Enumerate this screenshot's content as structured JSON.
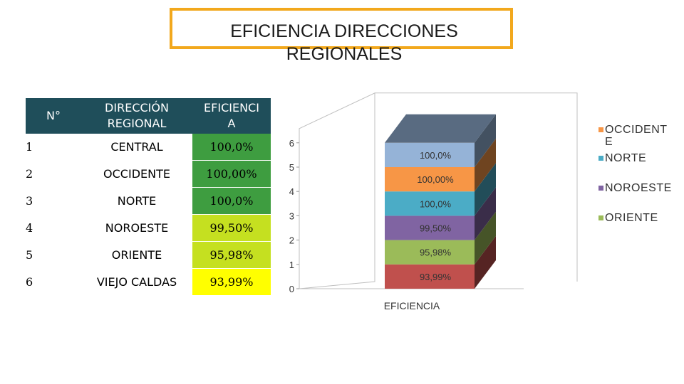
{
  "title": {
    "line1": "EFICIENCIA DIRECCIONES",
    "line2": "REGIONALES"
  },
  "table": {
    "headers": {
      "num": "N°",
      "direccion": "DIRECCIÓN REGIONAL",
      "eficiencia": "EFICIENCIA"
    },
    "header_lines": {
      "direccion_1": "DIRECCIÓN",
      "direccion_2": "REGIONAL",
      "eficiencia_1": "EFICIENCI",
      "eficiencia_2": "A"
    },
    "rows": [
      {
        "num": "1",
        "name": "CENTRAL",
        "value": "100,0%",
        "color": "#3e9d40"
      },
      {
        "num": "2",
        "name": "OCCIDENTE",
        "value": "100,00%",
        "color": "#3e9d40"
      },
      {
        "num": "3",
        "name": "NORTE",
        "value": "100,0%",
        "color": "#3e9d40"
      },
      {
        "num": "4",
        "name": "NOROESTE",
        "value": "99,50%",
        "color": "#c5e020"
      },
      {
        "num": "5",
        "name": "ORIENTE",
        "value": "95,98%",
        "color": "#c5e020"
      },
      {
        "num": "6",
        "name": "VIEJO CALDAS",
        "value": "93,99%",
        "color": "#ffff00"
      }
    ]
  },
  "chart_data": {
    "type": "bar",
    "stacked": true,
    "categories": [
      "EFICIENCIA"
    ],
    "ylim": [
      0,
      6
    ],
    "yticks": [
      "0",
      "1",
      "2",
      "3",
      "4",
      "5",
      "6"
    ],
    "xlabel": "EFICIENCIA",
    "series": [
      {
        "name": "VIEJO CALDAS",
        "value": 1,
        "label": "93,99%",
        "color": "#c0504d",
        "legend": false
      },
      {
        "name": "ORIENTE",
        "value": 1,
        "label": "95,98%",
        "color": "#9bbb59",
        "legend": true
      },
      {
        "name": "NOROESTE",
        "value": 1,
        "label": "99,50%",
        "color": "#8064a2",
        "legend": true
      },
      {
        "name": "NORTE",
        "value": 1,
        "label": "100,0%",
        "color": "#4bacc6",
        "legend": true
      },
      {
        "name": "OCCIDENTE",
        "value": 1,
        "label": "100,00%",
        "color": "#f79646",
        "legend": true
      },
      {
        "name": "CENTRAL",
        "value": 1,
        "label": "100,0%",
        "color": "#95b3d7",
        "legend": false
      }
    ],
    "legend_order": [
      "OCCIDENTE",
      "NORTE",
      "NOROESTE",
      "ORIENTE"
    ],
    "legend_labels": {
      "OCCIDENTE_1": "OCCIDENT",
      "OCCIDENTE_2": "E",
      "NORTE": "NORTE",
      "NOROESTE": "NOROESTE",
      "ORIENTE": "ORIENTE"
    },
    "legend_placement": "right",
    "grid": false
  }
}
